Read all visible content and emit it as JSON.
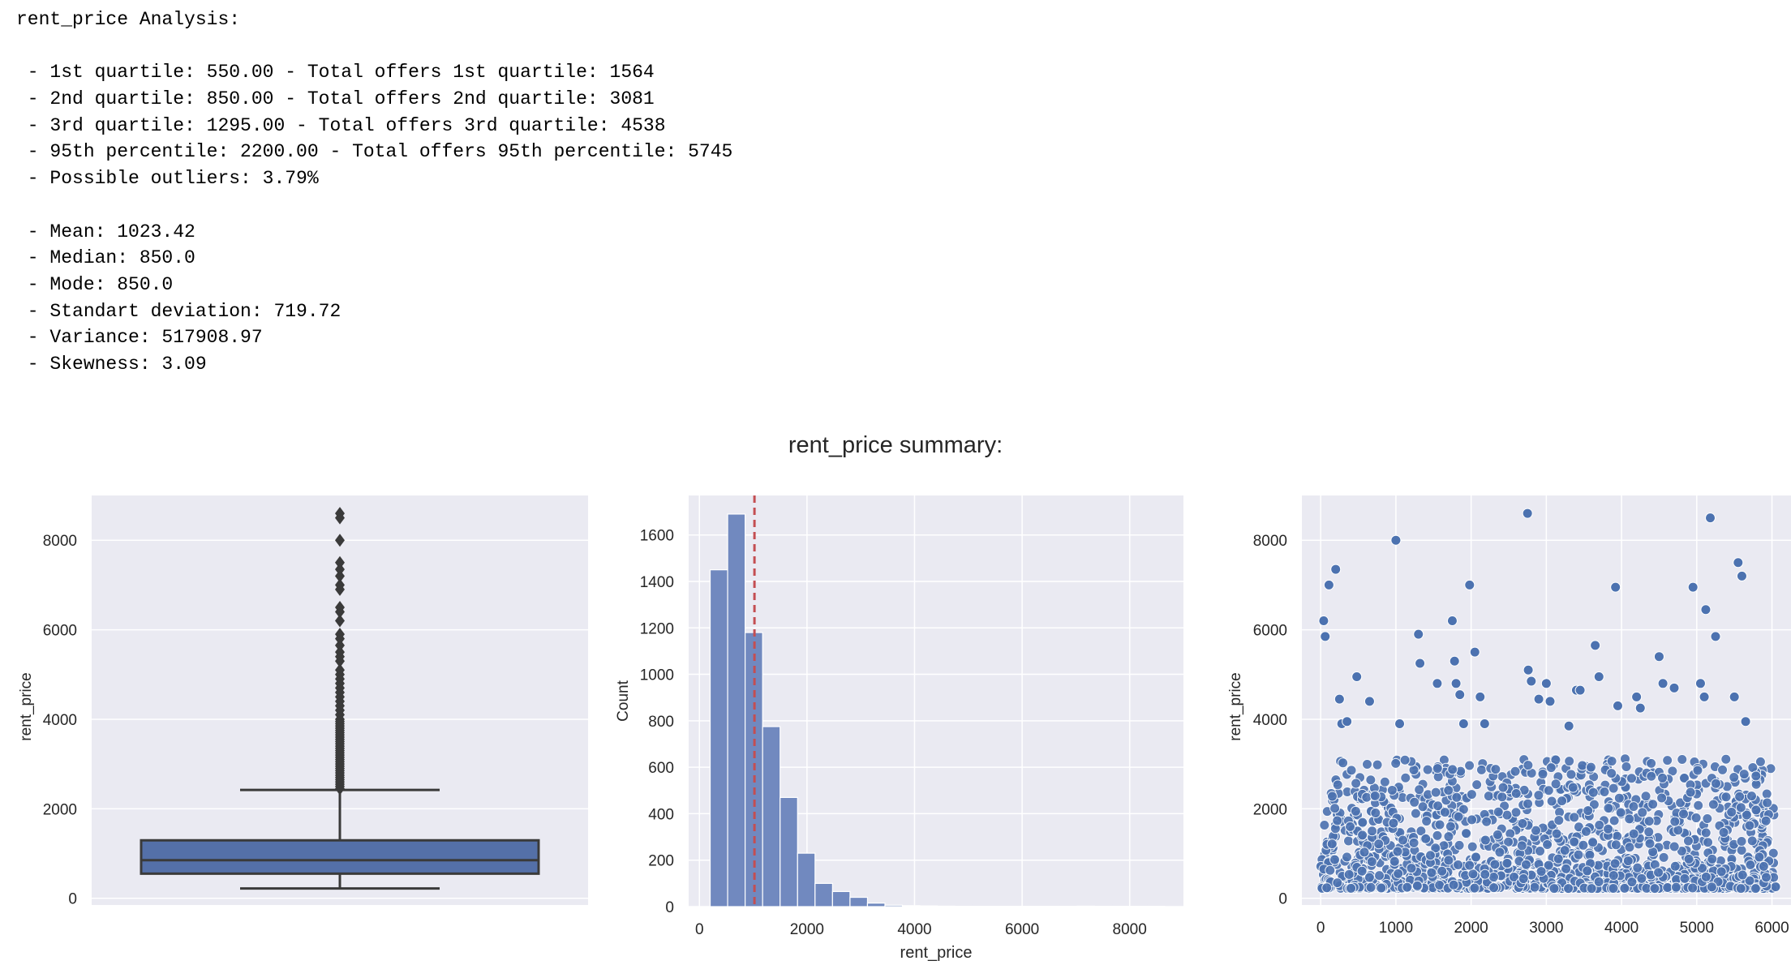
{
  "stats": {
    "heading": "rent_price Analysis:",
    "lines": [
      " - 1st quartile: 550.00 - Total offers 1st quartile: 1564",
      " - 2nd quartile: 850.00 - Total offers 2nd quartile: 3081",
      " - 3rd quartile: 1295.00 - Total offers 3rd quartile: 4538",
      " - 95th percentile: 2200.00 - Total offers 95th percentile: 5745",
      " - Possible outliers: 3.79%",
      "",
      " - Mean: 1023.42",
      " - Median: 850.0",
      " - Mode: 850.0",
      " - Standart deviation: 719.72",
      " - Variance: 517908.97",
      " - Skewness: 3.09"
    ]
  },
  "figure_title": "rent_price summary:",
  "colors": {
    "axes_bg": "#eaeaf2",
    "grid": "#ffffff",
    "box_fill": "#5470a8",
    "box_line": "#3a3a3a",
    "hist_fill": "#7189bf",
    "mean_line": "#c44e52",
    "scatter": "#4c72b0"
  },
  "chart_data": [
    {
      "type": "box",
      "ylabel": "rent_price",
      "ylim": [
        -150,
        9000
      ],
      "yticks": [
        "0",
        "2000",
        "4000",
        "6000",
        "8000"
      ],
      "whisker_low": 220,
      "q1": 550,
      "median": 850,
      "q3": 1295,
      "whisker_high": 2420,
      "outliers": [
        2450,
        2500,
        2550,
        2600,
        2650,
        2700,
        2750,
        2800,
        2850,
        2900,
        2950,
        3000,
        3050,
        3100,
        3150,
        3200,
        3250,
        3300,
        3350,
        3400,
        3450,
        3500,
        3550,
        3600,
        3650,
        3700,
        3750,
        3800,
        3850,
        3900,
        3950,
        4000,
        4100,
        4200,
        4300,
        4400,
        4500,
        4600,
        4700,
        4800,
        4900,
        5000,
        5100,
        5300,
        5400,
        5500,
        5650,
        5800,
        5900,
        6200,
        6400,
        6500,
        6900,
        7000,
        7200,
        7350,
        7500,
        8000,
        8500,
        8600
      ]
    },
    {
      "type": "histogram",
      "xlabel": "rent_price",
      "ylabel": "Count",
      "bin_width": 325,
      "x_start": 200,
      "counts": [
        1450,
        1690,
        1180,
        775,
        470,
        230,
        100,
        65,
        40,
        15,
        6,
        4,
        3,
        2,
        1,
        1,
        1,
        1,
        1,
        1,
        1,
        2,
        1,
        1,
        1,
        1
      ],
      "mean_line": 1023.42,
      "xlim": [
        -200,
        9000
      ],
      "ylim": [
        0,
        1770
      ],
      "xticks": [
        "0",
        "2000",
        "4000",
        "6000",
        "8000"
      ],
      "yticks": [
        "0",
        "200",
        "400",
        "600",
        "800",
        "1000",
        "1200",
        "1400",
        "1600"
      ]
    },
    {
      "type": "scatter",
      "ylabel": "rent_price",
      "xlim": [
        -250,
        6350
      ],
      "ylim": [
        -150,
        9000
      ],
      "xticks": [
        "0",
        "1000",
        "2000",
        "3000",
        "4000",
        "5000",
        "6000"
      ],
      "yticks": [
        "0",
        "2000",
        "4000",
        "6000",
        "8000"
      ],
      "outlier_points": [
        [
          40,
          6200
        ],
        [
          60,
          5850
        ],
        [
          110,
          7000
        ],
        [
          200,
          7350
        ],
        [
          250,
          4450
        ],
        [
          280,
          3900
        ],
        [
          350,
          3950
        ],
        [
          480,
          4950
        ],
        [
          650,
          4400
        ],
        [
          1000,
          8000
        ],
        [
          1050,
          3900
        ],
        [
          1300,
          5900
        ],
        [
          1320,
          5250
        ],
        [
          1550,
          4800
        ],
        [
          1750,
          6200
        ],
        [
          1780,
          5300
        ],
        [
          1800,
          4800
        ],
        [
          1850,
          4550
        ],
        [
          1900,
          3900
        ],
        [
          1980,
          7000
        ],
        [
          2050,
          5500
        ],
        [
          2120,
          4500
        ],
        [
          2180,
          3900
        ],
        [
          2750,
          8600
        ],
        [
          2760,
          5100
        ],
        [
          2800,
          4850
        ],
        [
          2900,
          4450
        ],
        [
          3000,
          4800
        ],
        [
          3050,
          4400
        ],
        [
          3300,
          3850
        ],
        [
          3400,
          4650
        ],
        [
          3450,
          4650
        ],
        [
          3650,
          5650
        ],
        [
          3700,
          4950
        ],
        [
          3920,
          6950
        ],
        [
          3950,
          4300
        ],
        [
          4200,
          4500
        ],
        [
          4250,
          4250
        ],
        [
          4500,
          5400
        ],
        [
          4550,
          4800
        ],
        [
          4700,
          4700
        ],
        [
          4950,
          6950
        ],
        [
          5050,
          4800
        ],
        [
          5100,
          4500
        ],
        [
          5120,
          6450
        ],
        [
          5180,
          8500
        ],
        [
          5250,
          5850
        ],
        [
          5500,
          4500
        ],
        [
          5550,
          7500
        ],
        [
          5600,
          7200
        ],
        [
          5650,
          3950
        ]
      ]
    }
  ]
}
